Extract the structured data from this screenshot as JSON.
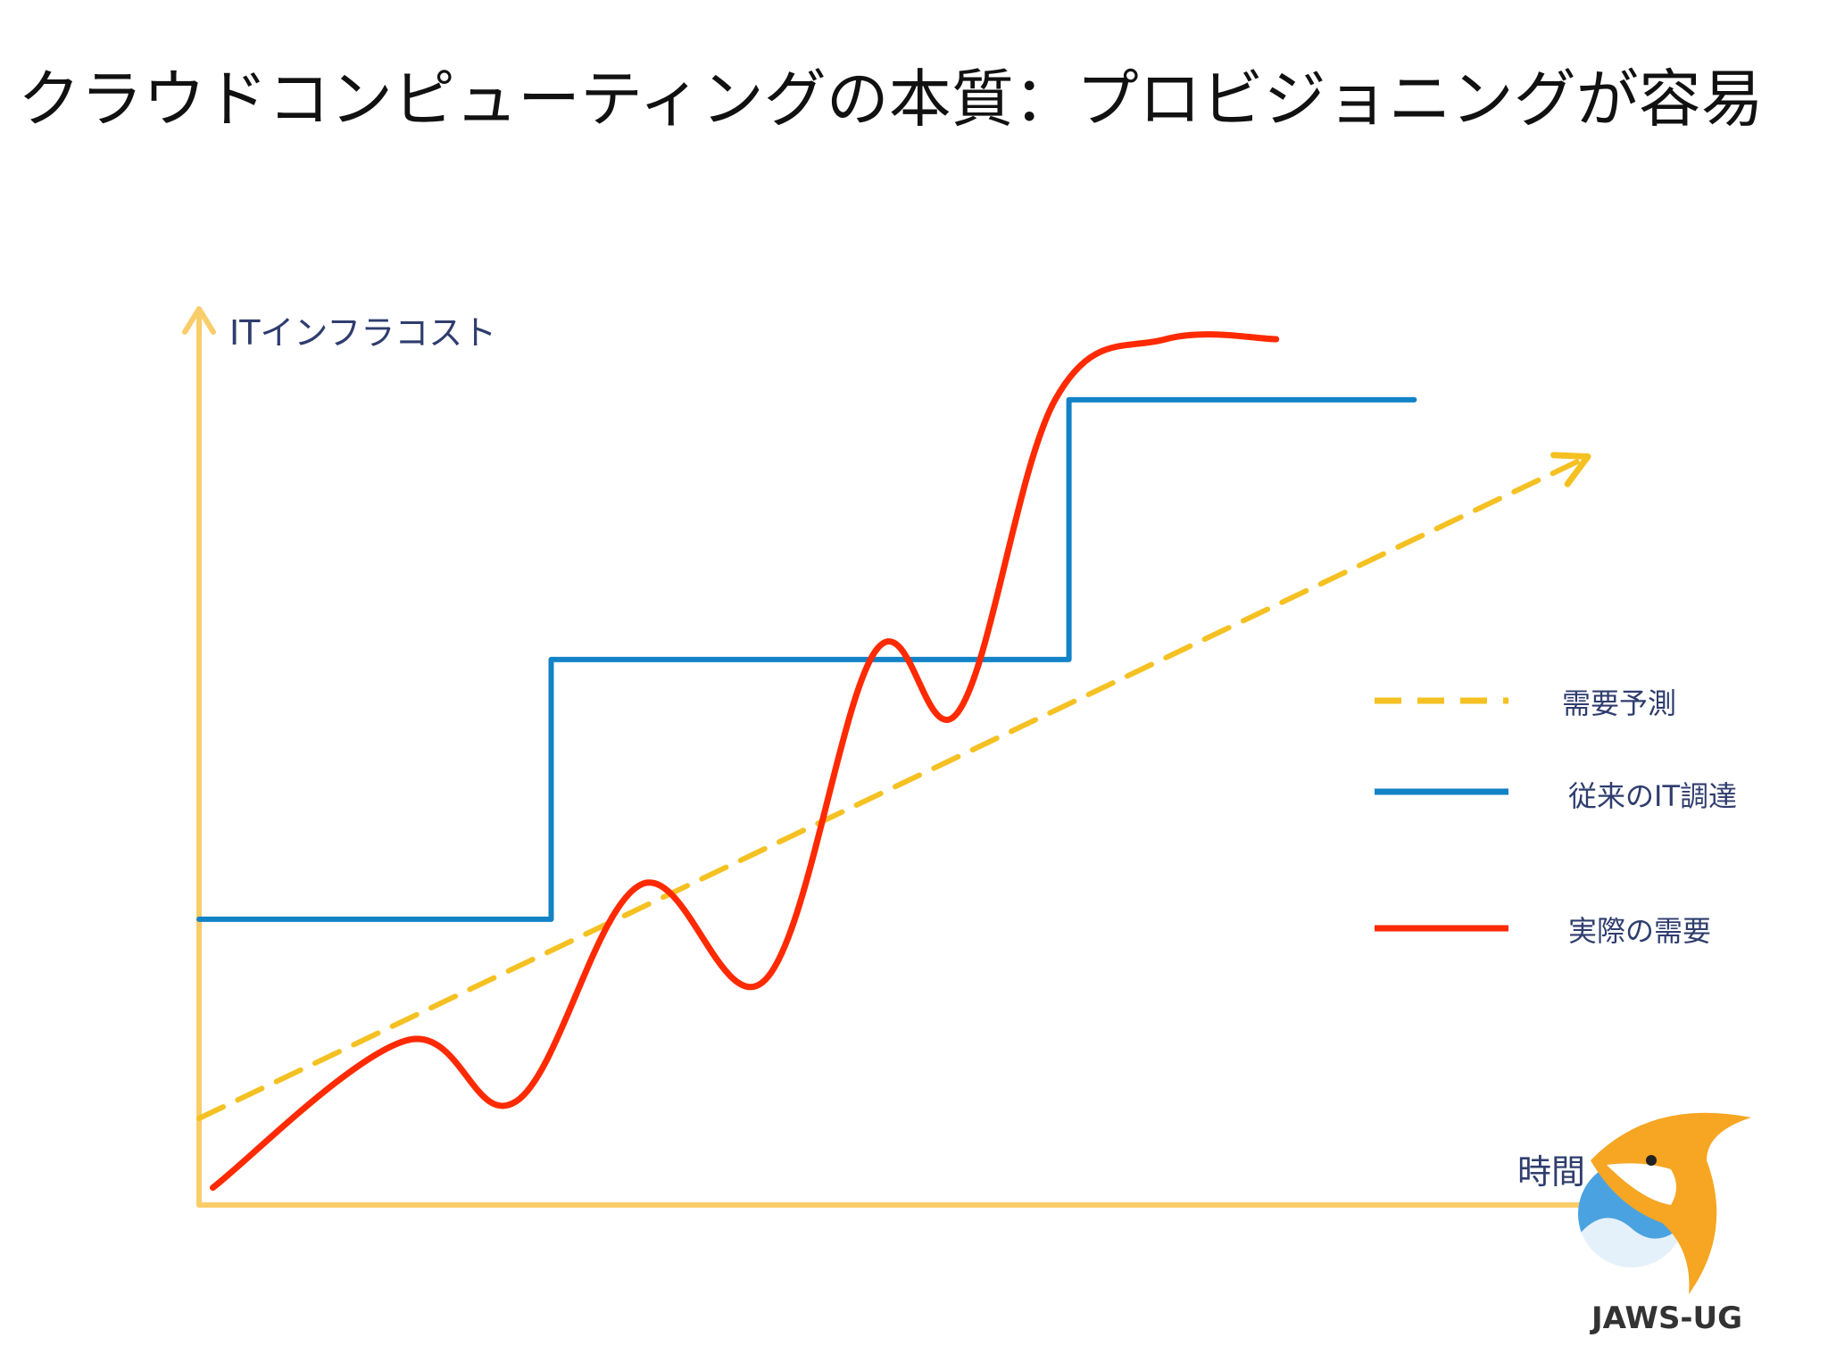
{
  "slide": {
    "title": "クラウドコンピューティングの本質：プロビジョニングが容易",
    "logo_text": "JAWS-UG"
  },
  "chart_data": {
    "type": "line",
    "ylabel": "ITインフラコスト",
    "xlabel": "時間",
    "xlim": [
      0,
      100
    ],
    "ylim": [
      0,
      100
    ],
    "grid": false,
    "legend_position": "right",
    "colors": {
      "axis": "#f9cd6a",
      "forecast": "#f5c122",
      "traditional": "#1383c7",
      "actual": "#ff2a00",
      "label": "#2f3d6e"
    },
    "series": [
      {
        "key": "forecast",
        "name": "需要予測",
        "style": "dashed",
        "x": [
          0,
          100
        ],
        "y": [
          10,
          86
        ]
      },
      {
        "key": "traditional",
        "name": "従来のIT調達",
        "style": "step",
        "x": [
          0,
          25.5,
          25.5,
          63,
          63,
          88
        ],
        "y": [
          33,
          33,
          63,
          63,
          93,
          93
        ]
      },
      {
        "key": "actual",
        "name": "実際の需要",
        "style": "smooth",
        "x": [
          1,
          15,
          23,
          32,
          41,
          49,
          55,
          62,
          70,
          78
        ],
        "y": [
          2,
          19,
          12,
          37,
          26,
          64,
          57,
          93,
          100,
          100
        ]
      }
    ]
  }
}
